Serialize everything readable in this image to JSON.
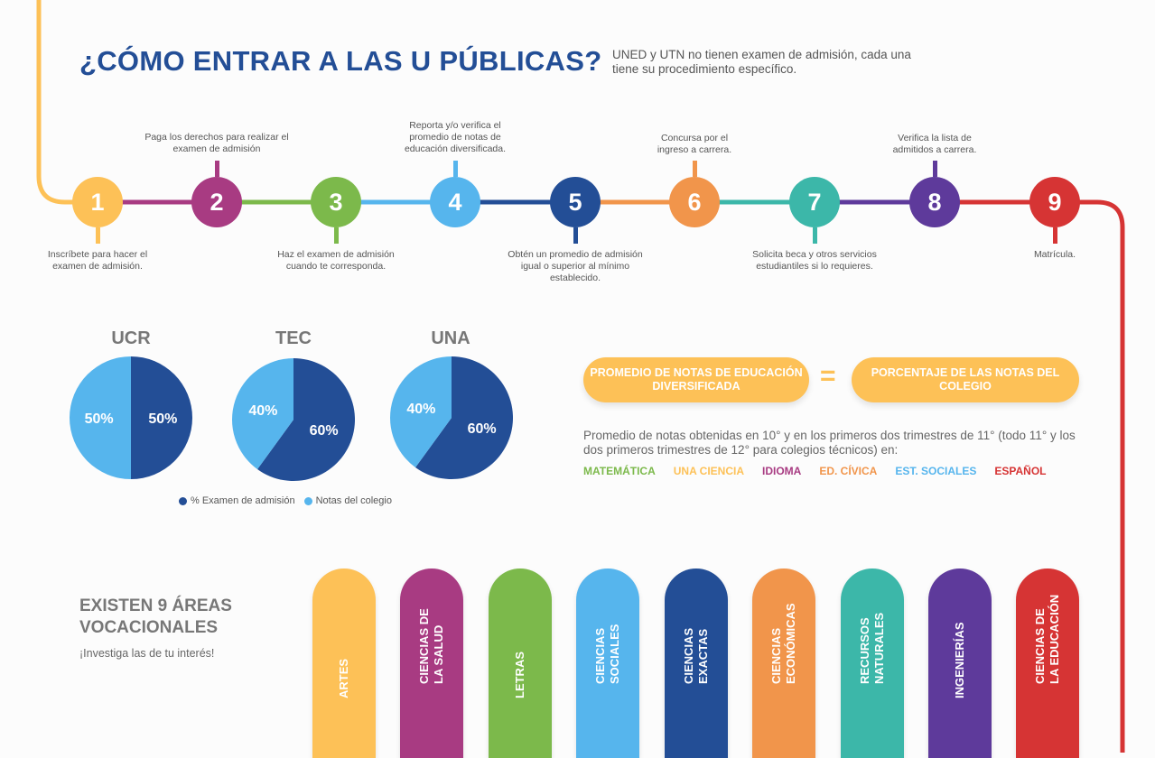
{
  "header": {
    "title": "¿CÓMO ENTRAR A LAS U PÚBLICAS?",
    "subtitle": "UNED y UTN no tienen examen de admisión, cada una tiene su procedimiento específico."
  },
  "steps": [
    {
      "number": "1",
      "text": "Inscríbete para hacer el examen de admisión.",
      "color": "#fdc157"
    },
    {
      "number": "2",
      "text": "Paga los derechos para realizar el examen de admisión",
      "color": "#a83b82"
    },
    {
      "number": "3",
      "text": "Haz el examen de admisión cuando te corresponda.",
      "color": "#7cb94b"
    },
    {
      "number": "4",
      "text": "Reporta y/o verifica el promedio de notas de educación diversificada.",
      "color": "#56b5ed"
    },
    {
      "number": "5",
      "text": "Obtén un promedio de admisión igual o superior al mínimo establecido.",
      "color": "#234e96"
    },
    {
      "number": "6",
      "text": "Concursa por el ingreso a carrera.",
      "color": "#f1954b"
    },
    {
      "number": "7",
      "text": "Solicita beca y otros servicios estudiantiles si lo requieres.",
      "color": "#3cb7a9"
    },
    {
      "number": "8",
      "text": "Verifica la lista de admitidos a carrera.",
      "color": "#5e3a9b"
    },
    {
      "number": "9",
      "text": "Matrícula.",
      "color": "#d63434"
    }
  ],
  "chart_data": {
    "type": "pie",
    "series_names": [
      "% Examen de admisión",
      "Notas del colegio"
    ],
    "colors": [
      "#234e96",
      "#56b5ed"
    ],
    "pies": [
      {
        "title": "UCR",
        "values": [
          50,
          50
        ],
        "labels": [
          "50%",
          "50%"
        ]
      },
      {
        "title": "TEC",
        "values": [
          60,
          40
        ],
        "labels": [
          "60%",
          "40%"
        ]
      },
      {
        "title": "UNA",
        "values": [
          60,
          40
        ],
        "labels": [
          "60%",
          "40%"
        ]
      }
    ]
  },
  "formula": {
    "left": "PROMEDIO DE NOTAS DE EDUCACIÓN DIVERSIFICADA",
    "equals": "=",
    "right": "PORCENTAJE DE LAS NOTAS DEL COLEGIO",
    "description": "Promedio de notas obtenidas en 10° y en los primeros dos trimestres de 11° (todo 11° y los dos primeros trimestres de 12° para colegios técnicos) en:",
    "subjects": [
      {
        "label": "MATEMÁTICA",
        "color": "#7cb94b"
      },
      {
        "label": "UNA CIENCIA",
        "color": "#fdc157"
      },
      {
        "label": "IDIOMA",
        "color": "#a83b82"
      },
      {
        "label": "ED. CÍVICA",
        "color": "#f1954b"
      },
      {
        "label": "EST. SOCIALES",
        "color": "#56b5ed"
      },
      {
        "label": "ESPAÑOL",
        "color": "#d63434"
      }
    ]
  },
  "areas": {
    "title_line1": "EXISTEN 9 ÁREAS",
    "title_line2": "VOCACIONALES",
    "subtitle": "¡Investiga las de tu interés!",
    "items": [
      {
        "line1": "ARTES",
        "line2": "",
        "color": "#fdc157"
      },
      {
        "line1": "CIENCIAS DE",
        "line2": "LA SALUD",
        "color": "#a83b82"
      },
      {
        "line1": "LETRAS",
        "line2": "",
        "color": "#7cb94b"
      },
      {
        "line1": "CIENCIAS",
        "line2": "SOCIALES",
        "color": "#56b5ed"
      },
      {
        "line1": "CIENCIAS",
        "line2": "EXACTAS",
        "color": "#234e96"
      },
      {
        "line1": "CIENCIAS",
        "line2": "ECONÓMICAS",
        "color": "#f1954b"
      },
      {
        "line1": "RECURSOS",
        "line2": "NATURALES",
        "color": "#3cb7a9"
      },
      {
        "line1": "INGENIERÍAS",
        "line2": "",
        "color": "#5e3a9b"
      },
      {
        "line1": "CIENCIAS DE",
        "line2": "LA EDUCACIÓN",
        "color": "#d63434"
      }
    ]
  }
}
